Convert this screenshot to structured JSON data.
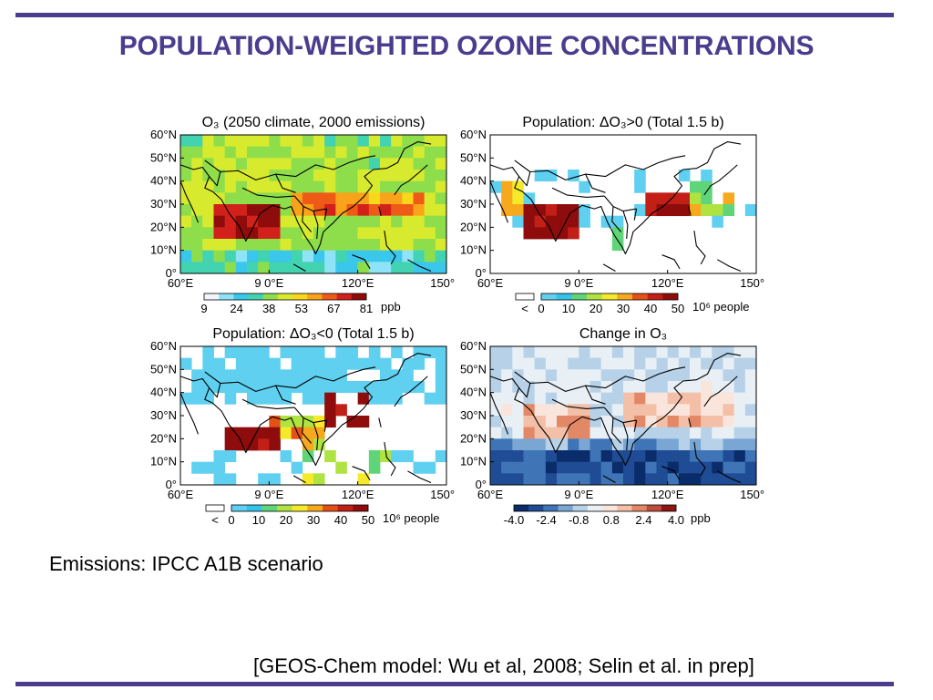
{
  "slide": {
    "title": "POPULATION-WEIGHTED OZONE CONCENTRATIONS",
    "emissions_note": "Emissions: IPCC A1B scenario",
    "citation": "[GEOS-Chem model: Wu et al, 2008; Selin et al. in prep]",
    "colors": {
      "accent": "#4b3c8e"
    }
  },
  "axes": {
    "lat_labels": [
      "60°N",
      "50°N",
      "40°N",
      "30°N",
      "20°N",
      "10°N",
      "0°"
    ],
    "lon_labels": [
      "60°E",
      "9 0°E",
      "120°E",
      "150°E"
    ]
  },
  "panels": [
    {
      "title": "O₃ (2050 climate, 2000 emissions)",
      "colorbar": {
        "ticks": [
          "9",
          "24",
          "38",
          "53",
          "67",
          "81"
        ],
        "unit": "ppb",
        "under": ""
      }
    },
    {
      "title": "Population:  ΔO₃>0 (Total 1.5 b)",
      "colorbar": {
        "ticks": [
          "0",
          "10",
          "20",
          "30",
          "40",
          "50"
        ],
        "unit": "10⁶ people",
        "under": "<"
      }
    },
    {
      "title": "Population:  ΔO₃<0 (Total 1.5 b)",
      "colorbar": {
        "ticks": [
          "0",
          "10",
          "20",
          "30",
          "40",
          "50"
        ],
        "unit": "10⁶ people",
        "under": "<"
      }
    },
    {
      "title": "Change in O₃",
      "colorbar": {
        "ticks": [
          "-4.0",
          "-2.4",
          "-0.8",
          "0.8",
          "2.4",
          "4.0"
        ],
        "unit": "ppb",
        "under": ""
      }
    }
  ]
}
